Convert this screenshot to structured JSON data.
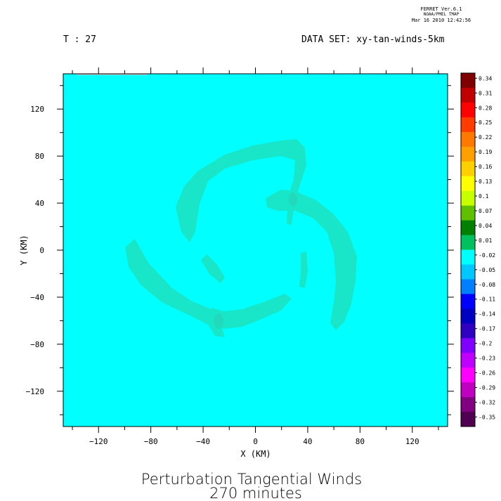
{
  "header": {
    "program": "FERRET Ver.6.1",
    "org": "NOAA/PMEL TMAP",
    "timestamp": "Mar 16 2010 12:42:56",
    "time_label": "T : 27",
    "dataset_label": "DATA SET: xy-tan-winds-5km"
  },
  "chart_data": {
    "type": "heatmap",
    "title": "Perturbation Tangential Winds",
    "subtitle": "270 minutes",
    "xlabel": "X (KM)",
    "ylabel": "Y (KM)",
    "xlim": [
      -147,
      147
    ],
    "ylim": [
      -150,
      150
    ],
    "x_ticks": [
      -120,
      -80,
      -40,
      0,
      40,
      80,
      120
    ],
    "y_ticks": [
      120,
      80,
      40,
      0,
      -40,
      -80,
      -120
    ],
    "background_value": -0.005,
    "background_color": "#00ffff",
    "feature_color": "#19e6c8",
    "feature_value": 0.01,
    "feature_description_points": [
      {
        "x": -28,
        "y": -62
      },
      {
        "x": 28,
        "y": 44
      }
    ],
    "colorbar": {
      "labels": [
        "0.34",
        "0.31",
        "0.28",
        "0.25",
        "0.22",
        "0.19",
        "0.16",
        "0.13",
        "0.1",
        "0.07",
        "0.04",
        "0.01",
        "-0.02",
        "-0.05",
        "-0.08",
        "-0.11",
        "-0.14",
        "-0.17",
        "-0.2",
        "-0.23",
        "-0.26",
        "-0.29",
        "-0.32",
        "-0.35"
      ],
      "colors": [
        "#7f0000",
        "#c00000",
        "#ff0000",
        "#ff3c00",
        "#ff7800",
        "#ffa000",
        "#ffd000",
        "#ffff00",
        "#c8ff00",
        "#60c000",
        "#008000",
        "#00c060",
        "#00ffff",
        "#00c8ff",
        "#0080ff",
        "#0000ff",
        "#0000c0",
        "#3000c0",
        "#8000ff",
        "#c000ff",
        "#ff00ff",
        "#c000c0",
        "#800080",
        "#500050"
      ]
    }
  }
}
